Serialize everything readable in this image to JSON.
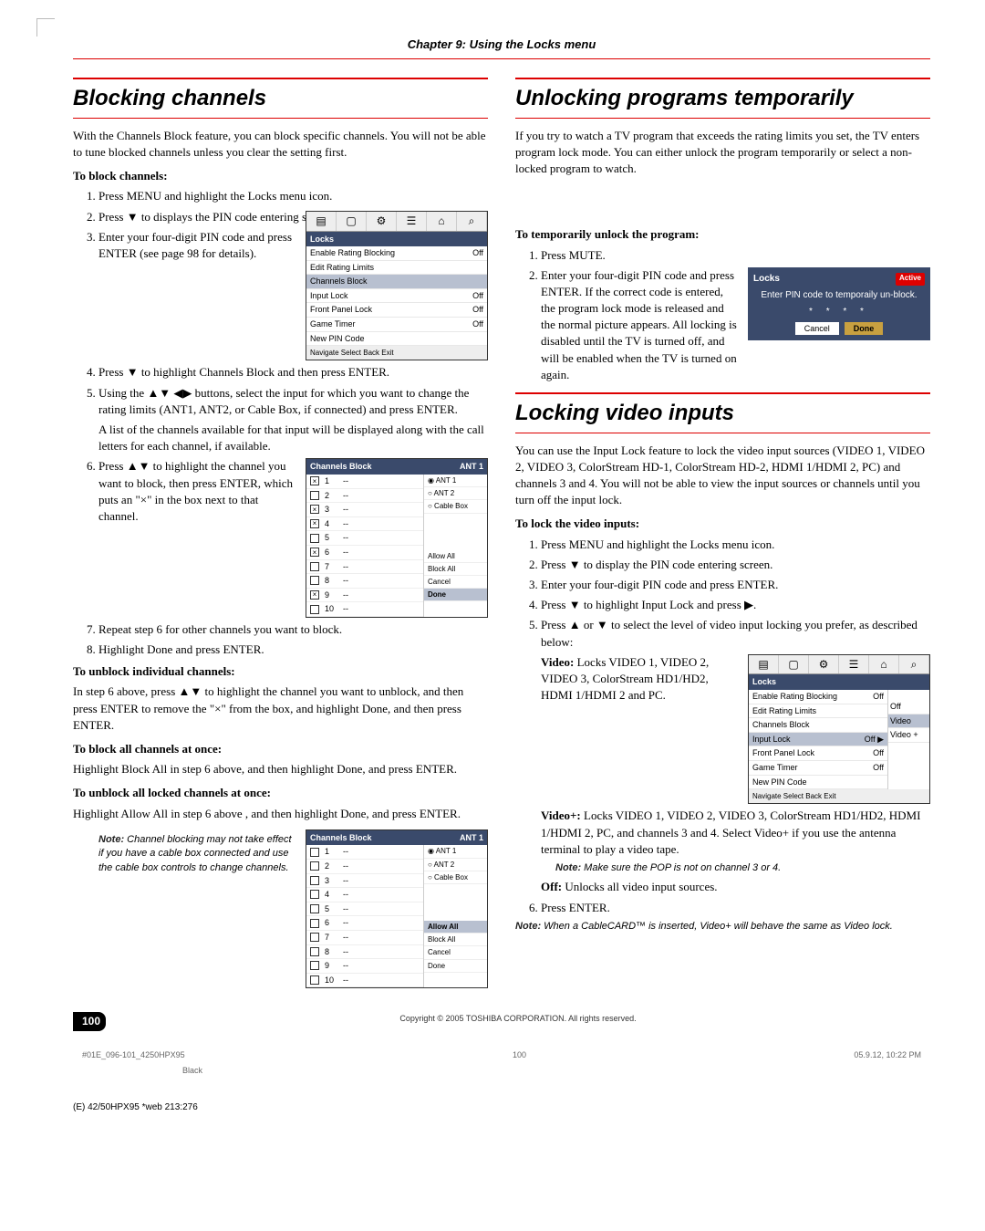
{
  "chapter_header": "Chapter 9: Using the Locks menu",
  "colors": {
    "rule": "#d00000",
    "menu_bg": "#3a4a6b",
    "sel_bg": "#b8c0d0",
    "done_bg": "#c8a040"
  },
  "left": {
    "h1": "Blocking channels",
    "intro": "With the Channels Block feature, you can block specific channels. You will not be able to tune blocked channels unless you clear the setting first.",
    "sub1": "To block channels:",
    "steps": [
      "Press MENU and highlight the Locks menu icon.",
      "Press ▼ to displays the PIN code entering screen.",
      "Enter your four-digit PIN code and press ENTER (see page 98 for details).",
      "Press ▼ to highlight Channels Block and then press ENTER.",
      "Using the ▲▼ ◀▶ buttons, select the input for which you want to change the rating limits (ANT1, ANT2, or Cable Box, if connected) and press ENTER.",
      "Press ▲▼ to highlight the channel you want to block, then press ENTER, which puts an \"×\" in the box next to that channel.",
      "Repeat step 6 for other channels you want to block.",
      "Highlight Done and press ENTER."
    ],
    "step5b": "A list of the channels available for that input will be displayed along with the call letters for each channel, if available.",
    "sub2": "To unblock individual channels:",
    "p2": "In step 6 above, press ▲▼ to highlight the channel you want to unblock, and then press ENTER to remove the \"×\" from the box, and highlight Done, and then press ENTER.",
    "sub3": "To block all channels at once:",
    "p3": "Highlight Block All in step 6 above, and then highlight Done, and press ENTER.",
    "sub4": "To unblock all locked channels at once:",
    "p4": "Highlight Allow All in step 6 above , and then highlight Done, and press ENTER.",
    "note1": "Channel blocking may not take effect if you have a cable box connected and use the cable box controls to change channels.",
    "menu1": {
      "title": "Locks",
      "rows": [
        [
          "Enable Rating Blocking",
          "Off"
        ],
        [
          "Edit Rating Limits",
          ""
        ],
        [
          "Channels Block",
          ""
        ],
        [
          "Input Lock",
          "Off"
        ],
        [
          "Front Panel Lock",
          "Off"
        ],
        [
          "Game Timer",
          "Off"
        ],
        [
          "New PIN Code",
          ""
        ]
      ],
      "sel": 2,
      "nav": "Navigate   Select   Back   Exit"
    },
    "chblock1": {
      "title": "Channels Block",
      "ant": "ANT 1",
      "rows": [
        [
          true,
          "1",
          "--"
        ],
        [
          false,
          "2",
          "--"
        ],
        [
          true,
          "3",
          "--"
        ],
        [
          true,
          "4",
          "--"
        ],
        [
          false,
          "5",
          "--"
        ],
        [
          true,
          "6",
          "--"
        ],
        [
          false,
          "7",
          "--"
        ],
        [
          false,
          "8",
          "--"
        ],
        [
          true,
          "9",
          "--"
        ],
        [
          false,
          "10",
          "--"
        ]
      ],
      "side": [
        "◉ ANT 1",
        "○ ANT 2",
        "○ Cable Box"
      ],
      "side2": [
        "Allow All",
        "Block All",
        "Cancel",
        "Done"
      ],
      "side2_sel": 3
    },
    "chblock2": {
      "title": "Channels Block",
      "ant": "ANT 1",
      "rows": [
        [
          false,
          "1",
          "--"
        ],
        [
          false,
          "2",
          "--"
        ],
        [
          false,
          "3",
          "--"
        ],
        [
          false,
          "4",
          "--"
        ],
        [
          false,
          "5",
          "--"
        ],
        [
          false,
          "6",
          "--"
        ],
        [
          false,
          "7",
          "--"
        ],
        [
          false,
          "8",
          "--"
        ],
        [
          false,
          "9",
          "--"
        ],
        [
          false,
          "10",
          "--"
        ]
      ],
      "side": [
        "◉ ANT 1",
        "○ ANT 2",
        "○ Cable Box"
      ],
      "side2": [
        "Allow All",
        "Block All",
        "Cancel",
        "Done"
      ],
      "side2_sel": 0
    }
  },
  "right": {
    "h1": "Unlocking programs temporarily",
    "intro": "If you try to watch a TV program that exceeds the rating limits you set, the TV enters program lock mode. You can either unlock the program temporarily or select a non-locked program to watch.",
    "sub1": "To temporarily unlock the program:",
    "steps1": [
      "Press MUTE.",
      "Enter your four-digit PIN code and press ENTER. If the correct code is entered, the program lock mode is released and the normal picture appears. All locking is disabled until the TV is turned off, and will be enabled when the TV is turned on again."
    ],
    "pin": {
      "title": "Locks",
      "active": "Active",
      "msg": "Enter PIN code to temporaily un-block.",
      "dots": "* * * *",
      "btns": [
        "Cancel",
        "Done"
      ],
      "sel": 1
    },
    "h2": "Locking video inputs",
    "intro2": "You can use the Input Lock feature to lock the video input sources (VIDEO 1, VIDEO 2, VIDEO 3, ColorStream HD-1, ColorStream HD-2, HDMI 1/HDMI 2, PC) and channels 3 and 4. You will not be able to view the input sources or channels until you turn off the input lock.",
    "sub2": "To lock the video inputs:",
    "steps2": [
      "Press MENU and highlight the Locks menu icon.",
      "Press ▼ to display the PIN code entering screen.",
      "Enter your four-digit PIN code and press ENTER.",
      "Press ▼ to highlight Input Lock and press ▶.",
      "Press ▲ or ▼ to select the level of video input locking you prefer, as described below:"
    ],
    "opt_video_label": "Video:",
    "opt_video": " Locks VIDEO 1, VIDEO 2, VIDEO 3, ColorStream HD1/HD2, HDMI 1/HDMI 2 and PC.",
    "opt_videop_label": "Video+:",
    "opt_videop": " Locks VIDEO 1, VIDEO 2, VIDEO 3, ColorStream HD1/HD2, HDMI 1/HDMI 2, PC, and channels 3 and 4. Select Video+ if you use the antenna terminal to play a video tape.",
    "note_pop": "Make sure the POP is not on channel 3 or 4.",
    "opt_off_label": "Off:",
    "opt_off": " Unlocks all video input sources.",
    "step6": "Press ENTER.",
    "note2": "When a CableCARD™ is inserted, Video+ will behave the same as Video lock.",
    "menu2": {
      "title": "Locks",
      "rows": [
        [
          "Enable Rating Blocking",
          "Off"
        ],
        [
          "Edit Rating Limits",
          ""
        ],
        [
          "Channels Block",
          ""
        ],
        [
          "Input Lock",
          "Off ▶"
        ],
        [
          "Front Panel Lock",
          "Off"
        ],
        [
          "Game Timer",
          "Off"
        ],
        [
          "New PIN Code",
          ""
        ]
      ],
      "sel": 3,
      "sub": [
        "Off",
        "Video",
        "Video +"
      ],
      "sub_sel": 1,
      "nav": "Navigate   Select   Back   Exit"
    }
  },
  "footer": {
    "copyright": "Copyright © 2005 TOSHIBA CORPORATION. All rights reserved.",
    "page": "100",
    "file": "#01E_096-101_4250HPX95",
    "mid": "100",
    "ts": "05.9.12, 10:22 PM",
    "black": "Black",
    "web": "(E) 42/50HPX95 *web 213:276"
  }
}
